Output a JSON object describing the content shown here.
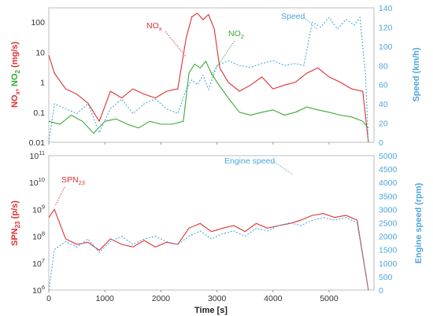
{
  "chart_data": [
    {
      "type": "line",
      "title": "",
      "xlabel": "Time [s]",
      "xlim": [
        0,
        5800
      ],
      "x_ticks": [
        "0",
        "1000",
        "2000",
        "3000",
        "4000",
        "5000"
      ],
      "x_tick_values": [
        0,
        1000,
        2000,
        3000,
        4000,
        5000
      ],
      "ylabel_left_parts": [
        {
          "text": "NO",
          "color": "#e03030"
        },
        {
          "text": "x",
          "color": "#e03030",
          "sub": true
        },
        {
          "text": ", ",
          "color": "#e03030"
        },
        {
          "text": "NO",
          "color": "#3aa832"
        },
        {
          "text": "2",
          "color": "#3aa832",
          "sub": true
        },
        {
          "text": " (mg/s)",
          "color": "#e03030"
        }
      ],
      "y_left_scale": "log",
      "ylim_left": [
        0.01,
        300
      ],
      "y_left_ticks": [
        "0.01",
        "0.1",
        "1",
        "10",
        "100"
      ],
      "y_left_tick_values": [
        0.01,
        0.1,
        1,
        10,
        100
      ],
      "ylabel_right": "Speed  (km/h)",
      "ylim_right": [
        0,
        140
      ],
      "y_right_ticks": [
        "0",
        "20",
        "40",
        "60",
        "80",
        "100",
        "120",
        "140"
      ],
      "y_right_tick_values": [
        0,
        20,
        40,
        60,
        80,
        100,
        120,
        140
      ],
      "grid": false,
      "series": [
        {
          "name": "NOx",
          "label_main": "NO",
          "label_sub": "x",
          "color": "#e03030",
          "axis": "left",
          "style": "solid",
          "x": [
            0,
            100,
            300,
            500,
            700,
            900,
            1100,
            1300,
            1500,
            1700,
            1900,
            2100,
            2300,
            2450,
            2550,
            2650,
            2750,
            2850,
            2950,
            3050,
            3200,
            3400,
            3600,
            3800,
            4000,
            4200,
            4400,
            4600,
            4800,
            5000,
            5200,
            5400,
            5600,
            5700
          ],
          "values": [
            8,
            2,
            0.6,
            0.4,
            0.2,
            0.05,
            0.5,
            0.3,
            0.6,
            0.4,
            0.3,
            0.5,
            0.6,
            30,
            150,
            200,
            120,
            180,
            60,
            3,
            1,
            0.5,
            0.8,
            1.5,
            0.6,
            0.8,
            1,
            2,
            3,
            1.5,
            1,
            0.6,
            0.5,
            0.01
          ]
        },
        {
          "name": "NO2",
          "label_main": "NO",
          "label_sub": "2",
          "color": "#3aa832",
          "axis": "left",
          "style": "solid",
          "x": [
            0,
            200,
            400,
            600,
            800,
            1000,
            1200,
            1400,
            1600,
            1800,
            2000,
            2200,
            2400,
            2500,
            2600,
            2700,
            2800,
            2900,
            3000,
            3200,
            3400,
            3600,
            3800,
            4000,
            4200,
            4400,
            4600,
            4800,
            5000,
            5200,
            5400,
            5600,
            5700
          ],
          "values": [
            0.05,
            0.04,
            0.08,
            0.05,
            0.02,
            0.05,
            0.06,
            0.04,
            0.03,
            0.05,
            0.04,
            0.04,
            0.05,
            2,
            4,
            3,
            5,
            2,
            1,
            0.3,
            0.1,
            0.08,
            0.1,
            0.12,
            0.08,
            0.1,
            0.15,
            0.12,
            0.1,
            0.08,
            0.07,
            0.05,
            0.03
          ]
        },
        {
          "name": "Speed",
          "label_main": "Speed",
          "label_sub": "",
          "color": "#4da6dc",
          "axis": "right",
          "style": "dotted",
          "x": [
            0,
            100,
            300,
            500,
            700,
            900,
            1100,
            1300,
            1500,
            1700,
            1900,
            2100,
            2300,
            2450,
            2550,
            2650,
            2750,
            2850,
            3000,
            3200,
            3400,
            3600,
            3800,
            4000,
            4200,
            4400,
            4550,
            4700,
            4850,
            5000,
            5150,
            5300,
            5450,
            5550,
            5650,
            5700
          ],
          "values": [
            0,
            40,
            35,
            30,
            40,
            10,
            35,
            45,
            30,
            40,
            45,
            35,
            30,
            55,
            65,
            60,
            70,
            55,
            80,
            85,
            80,
            78,
            82,
            85,
            80,
            82,
            80,
            125,
            120,
            130,
            118,
            128,
            122,
            130,
            70,
            0
          ]
        }
      ]
    },
    {
      "type": "line",
      "title": "",
      "xlabel": "Time [s]",
      "xlim": [
        0,
        5800
      ],
      "x_ticks": [
        "0",
        "1000",
        "2000",
        "3000",
        "4000",
        "5000"
      ],
      "x_tick_values": [
        0,
        1000,
        2000,
        3000,
        4000,
        5000
      ],
      "ylabel_left_parts": [
        {
          "text": "SPN",
          "color": "#e03030"
        },
        {
          "text": "23",
          "color": "#e03030",
          "sub": true
        },
        {
          "text": " (p/s)",
          "color": "#e03030"
        }
      ],
      "y_left_scale": "log",
      "ylim_left": [
        1000000,
        100000000000
      ],
      "y_left_ticks_base": [
        "10",
        "10",
        "10",
        "10",
        "10",
        "10"
      ],
      "y_left_ticks_exp": [
        "6",
        "7",
        "8",
        "9",
        "10",
        "11"
      ],
      "y_left_tick_values": [
        1000000,
        10000000,
        100000000,
        1000000000,
        10000000000,
        100000000000
      ],
      "ylabel_right": "Engine speed (rpm)",
      "ylim_right": [
        0,
        5000
      ],
      "y_right_ticks": [
        "0",
        "500",
        "1000",
        "1500",
        "2000",
        "2500",
        "3000",
        "3500",
        "4000",
        "4500",
        "5000"
      ],
      "y_right_tick_values": [
        0,
        500,
        1000,
        1500,
        2000,
        2500,
        3000,
        3500,
        4000,
        4500,
        5000
      ],
      "grid": false,
      "series": [
        {
          "name": "SPN23",
          "label_main": "SPN",
          "label_sub": "23",
          "color": "#e03030",
          "axis": "left",
          "style": "solid",
          "x": [
            0,
            100,
            300,
            500,
            700,
            900,
            1100,
            1300,
            1500,
            1700,
            1900,
            2100,
            2300,
            2500,
            2700,
            2900,
            3100,
            3300,
            3500,
            3700,
            3900,
            4100,
            4300,
            4500,
            4700,
            4900,
            5100,
            5300,
            5500,
            5700
          ],
          "values": [
            500000000,
            1000000000,
            80000000,
            50000000,
            60000000,
            30000000,
            80000000,
            50000000,
            40000000,
            70000000,
            40000000,
            60000000,
            50000000,
            200000000,
            300000000,
            150000000,
            200000000,
            250000000,
            150000000,
            300000000,
            200000000,
            250000000,
            300000000,
            400000000,
            600000000,
            700000000,
            500000000,
            600000000,
            400000000,
            1000000
          ]
        },
        {
          "name": "Engine speed",
          "label_main": "Engine speed",
          "label_sub": "",
          "color": "#4da6dc",
          "axis": "right",
          "style": "dotted",
          "x": [
            0,
            100,
            300,
            500,
            700,
            900,
            1100,
            1300,
            1500,
            1700,
            1900,
            2100,
            2300,
            2500,
            2700,
            2900,
            3100,
            3300,
            3500,
            3700,
            3900,
            4100,
            4300,
            4500,
            4700,
            4900,
            5100,
            5300,
            5500,
            5700
          ],
          "values": [
            0,
            1500,
            1800,
            1600,
            1900,
            1400,
            1800,
            2000,
            1700,
            1900,
            2000,
            1800,
            1700,
            2000,
            2200,
            1900,
            2100,
            2200,
            2000,
            2300,
            2200,
            2400,
            2500,
            2400,
            2600,
            2700,
            2600,
            2700,
            2500,
            0
          ]
        }
      ]
    }
  ]
}
